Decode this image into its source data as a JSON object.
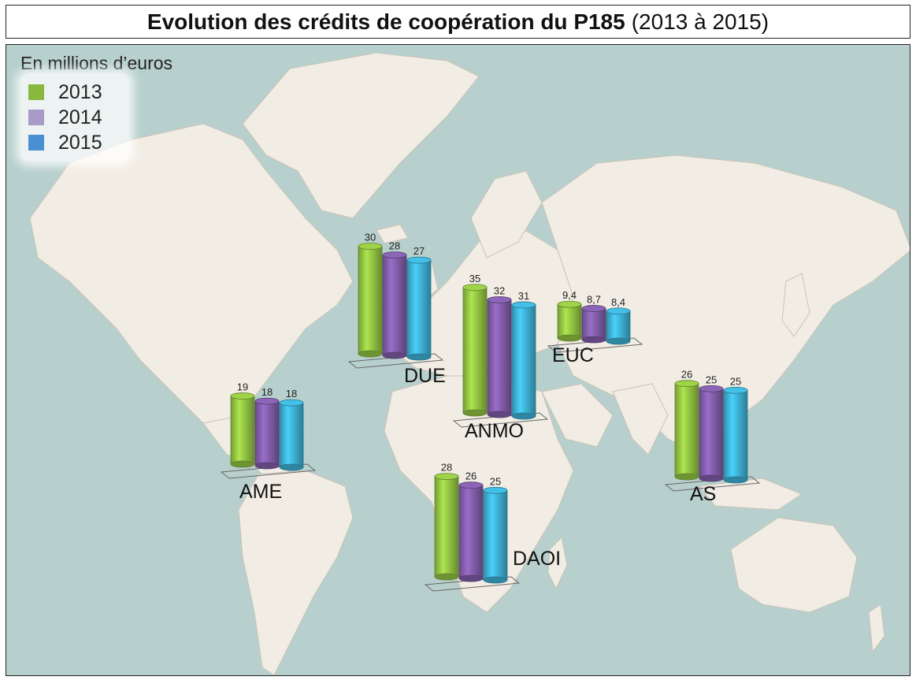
{
  "title": {
    "bold": "Evolution des crédits de coopération du P185",
    "normal": "(2013 à 2015)"
  },
  "unit_label": "En millions d’euros",
  "legend": [
    {
      "label": "2013",
      "color": "#8ab83f"
    },
    {
      "label": "2014",
      "color": "#a99bc9"
    },
    {
      "label": "2015",
      "color": "#4a8fd4"
    }
  ],
  "colors": {
    "ocean": "#b7d0cd",
    "land": "#f2ede4",
    "bar_2013": "#8ab83f",
    "bar_2014": "#7a58a0",
    "bar_2015": "#3aa7c9"
  },
  "chart_data": {
    "type": "bar",
    "unit": "En millions d’euros",
    "series_names": [
      "2013",
      "2014",
      "2015"
    ],
    "groups": [
      {
        "region": "DUE",
        "values": [
          30,
          28,
          27
        ],
        "labels": [
          "30",
          "28",
          "27"
        ]
      },
      {
        "region": "ANMO",
        "values": [
          35,
          32,
          31
        ],
        "labels": [
          "35",
          "32",
          "31"
        ]
      },
      {
        "region": "EUC",
        "values": [
          9.4,
          8.7,
          8.4
        ],
        "labels": [
          "9,4",
          "8,7",
          "8,4"
        ]
      },
      {
        "region": "AME",
        "values": [
          19,
          18,
          18
        ],
        "labels": [
          "19",
          "18",
          "18"
        ]
      },
      {
        "region": "AS",
        "values": [
          26,
          25,
          25
        ],
        "labels": [
          "26",
          "25",
          "25"
        ]
      },
      {
        "region": "DAOI",
        "values": [
          28,
          26,
          25
        ],
        "labels": [
          "28",
          "26",
          "25"
        ]
      }
    ]
  }
}
